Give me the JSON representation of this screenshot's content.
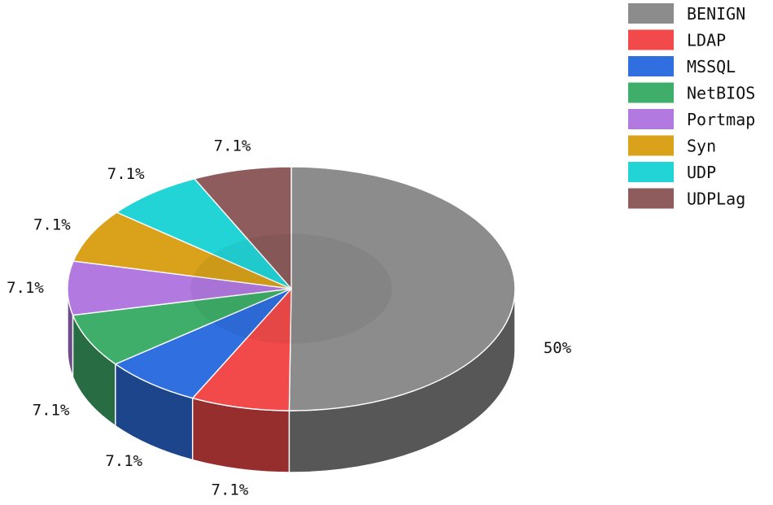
{
  "chart_data": {
    "type": "pie",
    "style": "3d",
    "categories": [
      "BENIGN",
      "LDAP",
      "MSSQL",
      "NetBIOS",
      "Portmap",
      "Syn",
      "UDP",
      "UDPLag"
    ],
    "values": [
      50,
      7.1,
      7.1,
      7.1,
      7.1,
      7.1,
      7.1,
      7.1
    ],
    "labels": [
      "50%",
      "7.1%",
      "7.1%",
      "7.1%",
      "7.1%",
      "7.1%",
      "7.1%",
      "7.1%"
    ],
    "colors": [
      "#8c8c8c",
      "#f24a4a",
      "#2f6fe0",
      "#3fae6a",
      "#b27ae0",
      "#d9a21a",
      "#22d4d6",
      "#8e5c5c"
    ],
    "legend": {
      "position": "top-right"
    }
  }
}
